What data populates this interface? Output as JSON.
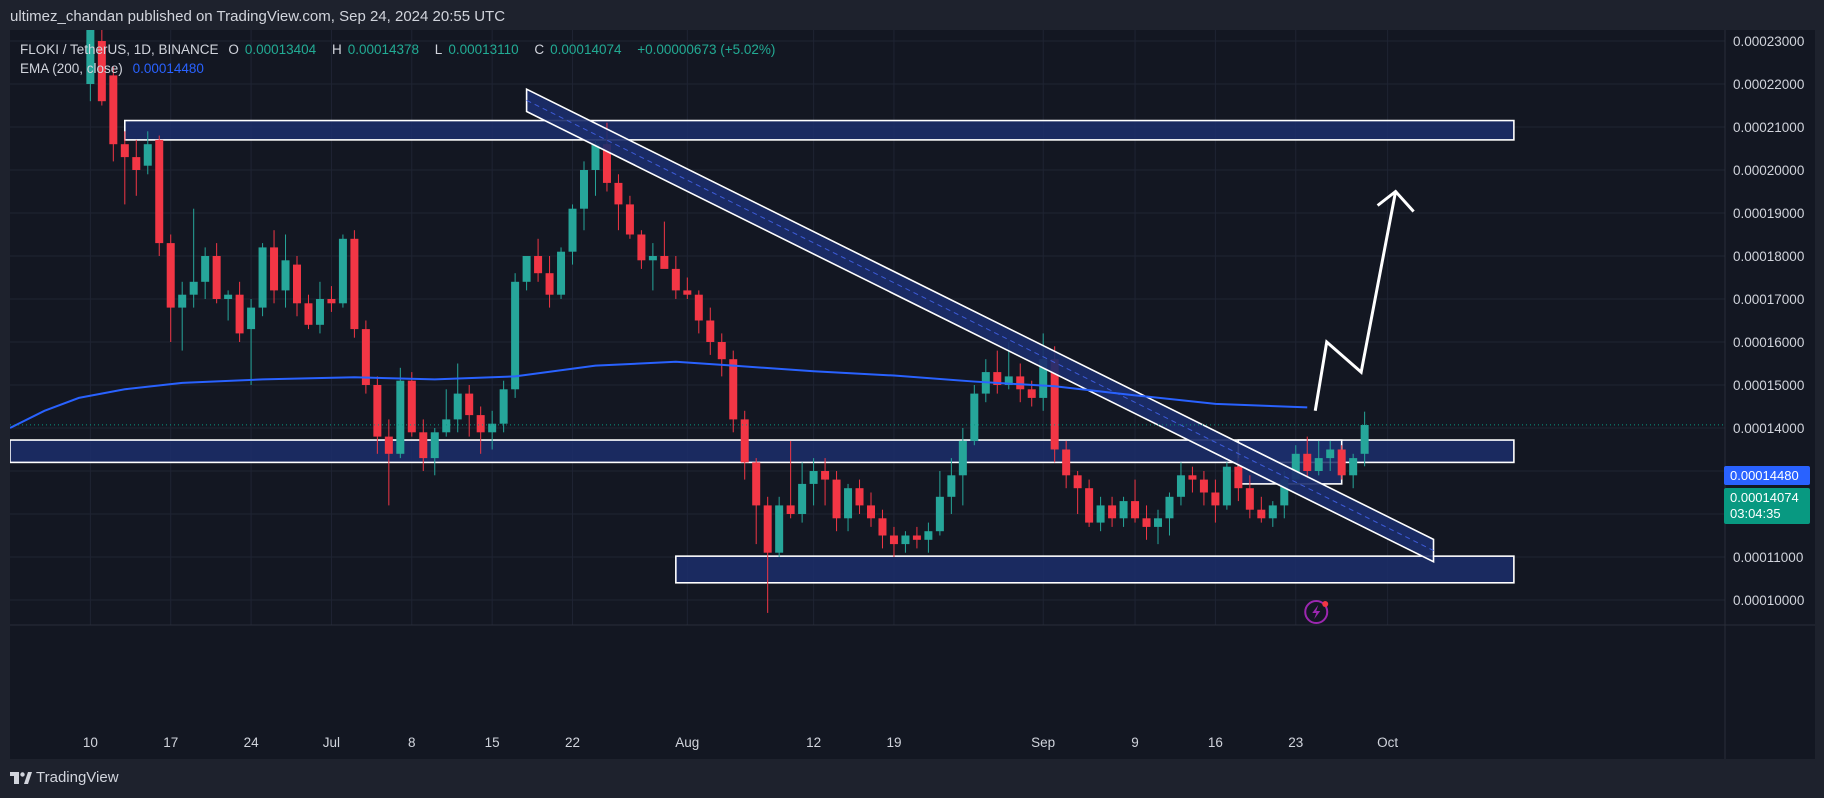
{
  "header": {
    "publisher": "ultimez_chandan published on TradingView.com, Sep 24, 2024 20:55 UTC"
  },
  "legend": {
    "symbol": "FLOKI / TetherUS, 1D, BINANCE",
    "open_label": "O",
    "open": "0.00013404",
    "high_label": "H",
    "high": "0.00014378",
    "low_label": "L",
    "low": "0.00013110",
    "close_label": "C",
    "close": "0.00014074",
    "change": "+0.00000673 (+5.02%)",
    "ema_label": "EMA (200, close)",
    "ema_value": "0.00014480"
  },
  "price_tags": {
    "ema": "0.00014480",
    "last": "0.00014074",
    "countdown": "03:04:35"
  },
  "footer": {
    "brand": "TradingView"
  },
  "colors": {
    "up": "#26a69a",
    "down": "#f23645",
    "ema": "#2962ff",
    "zone_fill": "#1c2e6b",
    "background": "#131722"
  },
  "chart_data": {
    "type": "candlestick",
    "title": "FLOKI / TetherUS, 1D, BINANCE",
    "y_axis": {
      "range": [
        9.55e-05,
        0.0002358
      ],
      "ticks": [
        "0.00010000",
        "0.00011000",
        "0.00012000",
        "0.00013000",
        "0.00014000",
        "0.00015000",
        "0.00016000",
        "0.00017000",
        "0.00018000",
        "0.00019000",
        "0.00020000",
        "0.00021000",
        "0.00022000",
        "0.00023000"
      ]
    },
    "x_axis": {
      "ticks": [
        "10",
        "17",
        "24",
        "Jul",
        "8",
        "15",
        "22",
        "Aug",
        "12",
        "19",
        "Sep",
        "9",
        "16",
        "23",
        "Oct"
      ],
      "range_days": [
        "2024-06-03",
        "2024-10-12"
      ]
    },
    "grid": true,
    "candles": [
      [
        0.00022,
        0.000238,
        0.000216,
        0.000237
      ],
      [
        0.00023,
        0.0002355,
        0.000215,
        0.000216
      ],
      [
        0.000222,
        0.000224,
        0.000202,
        0.000206
      ],
      [
        0.000206,
        0.000209,
        0.000192,
        0.000203
      ],
      [
        0.000203,
        0.000207,
        0.000194,
        0.0002
      ],
      [
        0.000201,
        0.000209,
        0.000199,
        0.000206
      ],
      [
        0.000207,
        0.000208,
        0.00018,
        0.000183
      ],
      [
        0.000183,
        0.000185,
        0.00016,
        0.000168
      ],
      [
        0.000168,
        0.000174,
        0.000158,
        0.000171
      ],
      [
        0.000171,
        0.000191,
        0.000168,
        0.000174
      ],
      [
        0.000174,
        0.000182,
        0.00017,
        0.00018
      ],
      [
        0.00018,
        0.000183,
        0.000169,
        0.00017
      ],
      [
        0.00017,
        0.000172,
        0.000165,
        0.000171
      ],
      [
        0.000171,
        0.000174,
        0.00016,
        0.000162
      ],
      [
        0.000163,
        0.00017,
        0.00015,
        0.000168
      ],
      [
        0.000168,
        0.000183,
        0.000166,
        0.000182
      ],
      [
        0.000182,
        0.000186,
        0.000169,
        0.000172
      ],
      [
        0.000172,
        0.000185,
        0.000168,
        0.000179
      ],
      [
        0.000178,
        0.00018,
        0.000166,
        0.000169
      ],
      [
        0.000169,
        0.000171,
        0.000163,
        0.000164
      ],
      [
        0.000164,
        0.000174,
        0.000162,
        0.00017
      ],
      [
        0.00017,
        0.000173,
        0.000167,
        0.000169
      ],
      [
        0.000169,
        0.000185,
        0.000168,
        0.000184
      ],
      [
        0.000184,
        0.000186,
        0.000161,
        0.000163
      ],
      [
        0.000163,
        0.000165,
        0.000148,
        0.00015
      ],
      [
        0.00015,
        0.000152,
        0.000134,
        0.000138
      ],
      [
        0.000138,
        0.000142,
        0.000122,
        0.000134
      ],
      [
        0.000134,
        0.000154,
        0.000133,
        0.000151
      ],
      [
        0.000151,
        0.000153,
        0.000138,
        0.000139
      ],
      [
        0.000139,
        0.000142,
        0.00013,
        0.000133
      ],
      [
        0.000133,
        0.00014,
        0.000129,
        0.000139
      ],
      [
        0.000139,
        0.000149,
        0.000138,
        0.000142
      ],
      [
        0.000142,
        0.000155,
        0.000139,
        0.000148
      ],
      [
        0.000148,
        0.00015,
        0.000138,
        0.000143
      ],
      [
        0.000143,
        0.000145,
        0.000134,
        0.000139
      ],
      [
        0.000139,
        0.000144,
        0.000135,
        0.000141
      ],
      [
        0.000141,
        0.000151,
        0.000139,
        0.000149
      ],
      [
        0.000149,
        0.000176,
        0.000147,
        0.000174
      ],
      [
        0.000174,
        0.00018,
        0.000172,
        0.00018
      ],
      [
        0.00018,
        0.000184,
        0.000174,
        0.000176
      ],
      [
        0.000176,
        0.00018,
        0.000168,
        0.000171
      ],
      [
        0.000171,
        0.000182,
        0.00017,
        0.000181
      ],
      [
        0.000181,
        0.000192,
        0.000178,
        0.000191
      ],
      [
        0.000191,
        0.000202,
        0.000186,
        0.0002
      ],
      [
        0.0002,
        0.000207,
        0.000194,
        0.000206
      ],
      [
        0.000206,
        0.000211,
        0.000195,
        0.000197
      ],
      [
        0.000197,
        0.000199,
        0.000186,
        0.000192
      ],
      [
        0.000192,
        0.000194,
        0.000184,
        0.000185
      ],
      [
        0.000185,
        0.000186,
        0.000177,
        0.000179
      ],
      [
        0.000179,
        0.000183,
        0.000172,
        0.00018
      ],
      [
        0.00018,
        0.000188,
        0.000178,
        0.000177
      ],
      [
        0.000177,
        0.00018,
        0.00017,
        0.000172
      ],
      [
        0.000172,
        0.000175,
        0.00017,
        0.000171
      ],
      [
        0.000171,
        0.000172,
        0.000162,
        0.000165
      ],
      [
        0.000165,
        0.000168,
        0.000157,
        0.00016
      ],
      [
        0.00016,
        0.000162,
        0.000152,
        0.000156
      ],
      [
        0.000156,
        0.000158,
        0.000139,
        0.000142
      ],
      [
        0.000142,
        0.000144,
        0.000128,
        0.000132
      ],
      [
        0.000132,
        0.000133,
        0.000113,
        0.000122
      ],
      [
        0.000122,
        0.000124,
        9.7e-05,
        0.000111
      ],
      [
        0.000111,
        0.000124,
        0.00011,
        0.000122
      ],
      [
        0.000122,
        0.000137,
        0.000119,
        0.00012
      ],
      [
        0.00012,
        0.000132,
        0.000118,
        0.000127
      ],
      [
        0.000127,
        0.000133,
        0.000122,
        0.00013
      ],
      [
        0.00013,
        0.000133,
        0.000122,
        0.000128
      ],
      [
        0.000128,
        0.00013,
        0.000116,
        0.000119
      ],
      [
        0.000119,
        0.000127,
        0.000116,
        0.000126
      ],
      [
        0.000126,
        0.000128,
        0.00012,
        0.000122
      ],
      [
        0.000122,
        0.000125,
        0.000117,
        0.000119
      ],
      [
        0.000119,
        0.000121,
        0.000112,
        0.000115
      ],
      [
        0.000115,
        0.000117,
        0.00011,
        0.000113
      ],
      [
        0.000113,
        0.000116,
        0.000111,
        0.000115
      ],
      [
        0.000115,
        0.000117,
        0.000112,
        0.000114
      ],
      [
        0.000114,
        0.000118,
        0.000111,
        0.000116
      ],
      [
        0.000116,
        0.00013,
        0.000115,
        0.000124
      ],
      [
        0.000124,
        0.000133,
        0.00012,
        0.000129
      ],
      [
        0.000129,
        0.00014,
        0.000122,
        0.000137
      ],
      [
        0.000137,
        0.00015,
        0.000136,
        0.000148
      ],
      [
        0.000148,
        0.000156,
        0.000146,
        0.000153
      ],
      [
        0.000153,
        0.000158,
        0.000148,
        0.00015
      ],
      [
        0.00015,
        0.00016,
        0.000149,
        0.000152
      ],
      [
        0.000152,
        0.000155,
        0.000146,
        0.000149
      ],
      [
        0.000149,
        0.000151,
        0.000145,
        0.000147
      ],
      [
        0.000147,
        0.000162,
        0.000144,
        0.000156
      ],
      [
        0.000156,
        0.000159,
        0.000132,
        0.000135
      ],
      [
        0.000135,
        0.000137,
        0.000126,
        0.000129
      ],
      [
        0.000129,
        0.00013,
        0.00012,
        0.000126
      ],
      [
        0.000126,
        0.000128,
        0.000117,
        0.000118
      ],
      [
        0.000118,
        0.000124,
        0.000116,
        0.000122
      ],
      [
        0.000122,
        0.000124,
        0.000117,
        0.000119
      ],
      [
        0.000119,
        0.000124,
        0.000117,
        0.000123
      ],
      [
        0.000123,
        0.000128,
        0.000118,
        0.000119
      ],
      [
        0.000119,
        0.000122,
        0.000114,
        0.000117
      ],
      [
        0.000117,
        0.000121,
        0.000113,
        0.000119
      ],
      [
        0.000119,
        0.000125,
        0.000115,
        0.000124
      ],
      [
        0.000124,
        0.000132,
        0.000122,
        0.000129
      ],
      [
        0.000129,
        0.000131,
        0.000125,
        0.000128
      ],
      [
        0.000128,
        0.00013,
        0.000122,
        0.000125
      ],
      [
        0.000125,
        0.000128,
        0.000118,
        0.000122
      ],
      [
        0.000122,
        0.000132,
        0.000121,
        0.000131
      ],
      [
        0.000131,
        0.000133,
        0.000123,
        0.000126
      ],
      [
        0.000126,
        0.000129,
        0.000119,
        0.000121
      ],
      [
        0.000121,
        0.000124,
        0.000118,
        0.000119
      ],
      [
        0.000119,
        0.000123,
        0.000117,
        0.000122
      ],
      [
        0.000122,
        0.00013,
        0.000119,
        0.000128
      ],
      [
        0.000128,
        0.000136,
        0.000127,
        0.000134
      ],
      [
        0.000134,
        0.000138,
        0.000128,
        0.00013
      ],
      [
        0.00013,
        0.000137,
        0.000129,
        0.000133
      ],
      [
        0.000133,
        0.000137,
        0.00013,
        0.000135
      ],
      [
        0.000135,
        0.000136,
        0.000128,
        0.000129
      ],
      [
        0.000129,
        0.000134,
        0.000126,
        0.000133
      ],
      [
        0.000134,
        0.0001438,
        0.0001311,
        0.0001407
      ]
    ],
    "ema": {
      "name": "EMA (200, close)",
      "points": [
        [
          "2024-06-03",
          0.00014
        ],
        [
          "2024-06-06",
          0.000144
        ],
        [
          "2024-06-09",
          0.000147
        ],
        [
          "2024-06-13",
          0.000149
        ],
        [
          "2024-06-18",
          0.0001505
        ],
        [
          "2024-06-25",
          0.0001513
        ],
        [
          "2024-07-03",
          0.0001518
        ],
        [
          "2024-07-10",
          0.0001513
        ],
        [
          "2024-07-17",
          0.000152
        ],
        [
          "2024-07-24",
          0.0001545
        ],
        [
          "2024-07-31",
          0.0001554
        ],
        [
          "2024-08-05",
          0.0001545
        ],
        [
          "2024-08-12",
          0.0001532
        ],
        [
          "2024-08-19",
          0.0001522
        ],
        [
          "2024-08-26",
          0.0001508
        ],
        [
          "2024-09-02",
          0.0001497
        ],
        [
          "2024-09-09",
          0.0001476
        ],
        [
          "2024-09-16",
          0.0001456
        ],
        [
          "2024-09-24",
          0.0001448
        ]
      ]
    },
    "zones": [
      {
        "from": "2024-06-13",
        "to": "2024-10-12",
        "low": 0.000207,
        "high": 0.0002115
      },
      {
        "from": "2024-06-03",
        "to": "2024-10-12",
        "low": 0.000132,
        "high": 0.0001372
      },
      {
        "from": "2024-07-31",
        "to": "2024-10-12",
        "low": 0.000104,
        "high": 0.0001102
      },
      {
        "from": "2024-09-18",
        "to": "2024-09-27",
        "low": 0.000127,
        "high": 0.0001372
      }
    ],
    "trendline": {
      "from": [
        "2024-07-18",
        0.0002162
      ],
      "to": [
        "2024-10-05",
        0.0001115
      ],
      "channel_width": 2.6e-06
    },
    "projection_arrow": [
      [
        "2024-09-24",
        0.000144
      ],
      [
        "2024-09-25",
        0.00016
      ],
      [
        "2024-09-28",
        0.000153
      ],
      [
        "2024-10-01",
        0.000195
      ]
    ]
  }
}
